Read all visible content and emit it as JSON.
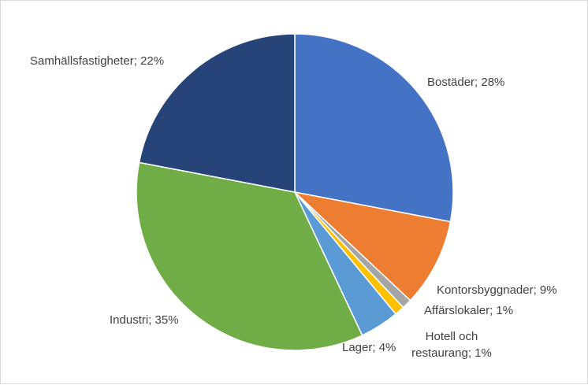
{
  "chart_data": {
    "type": "pie",
    "title": "",
    "legend": "none",
    "categories": [
      "Bostäder",
      "Kontorsbyggnader",
      "Affärslokaler",
      "Hotell och restaurang",
      "Lager",
      "Industri",
      "Samhällsfastigheter"
    ],
    "values": [
      28,
      9,
      1,
      1,
      4,
      35,
      22
    ],
    "colors": [
      "#4472c4",
      "#ed7d31",
      "#a5a5a5",
      "#ffc000",
      "#5b9bd5",
      "#70ad47",
      "#264478"
    ],
    "labels": [
      [
        "Bostäder; 28%"
      ],
      [
        "Kontorsbyggnader; 9%"
      ],
      [
        "Affärslokaler; 1%"
      ],
      [
        "Hotell och",
        "restaurang; 1%"
      ],
      [
        "Lager; 4%"
      ],
      [
        "Industri; 35%"
      ],
      [
        "Samhällsfastigheter; 22%"
      ]
    ]
  }
}
